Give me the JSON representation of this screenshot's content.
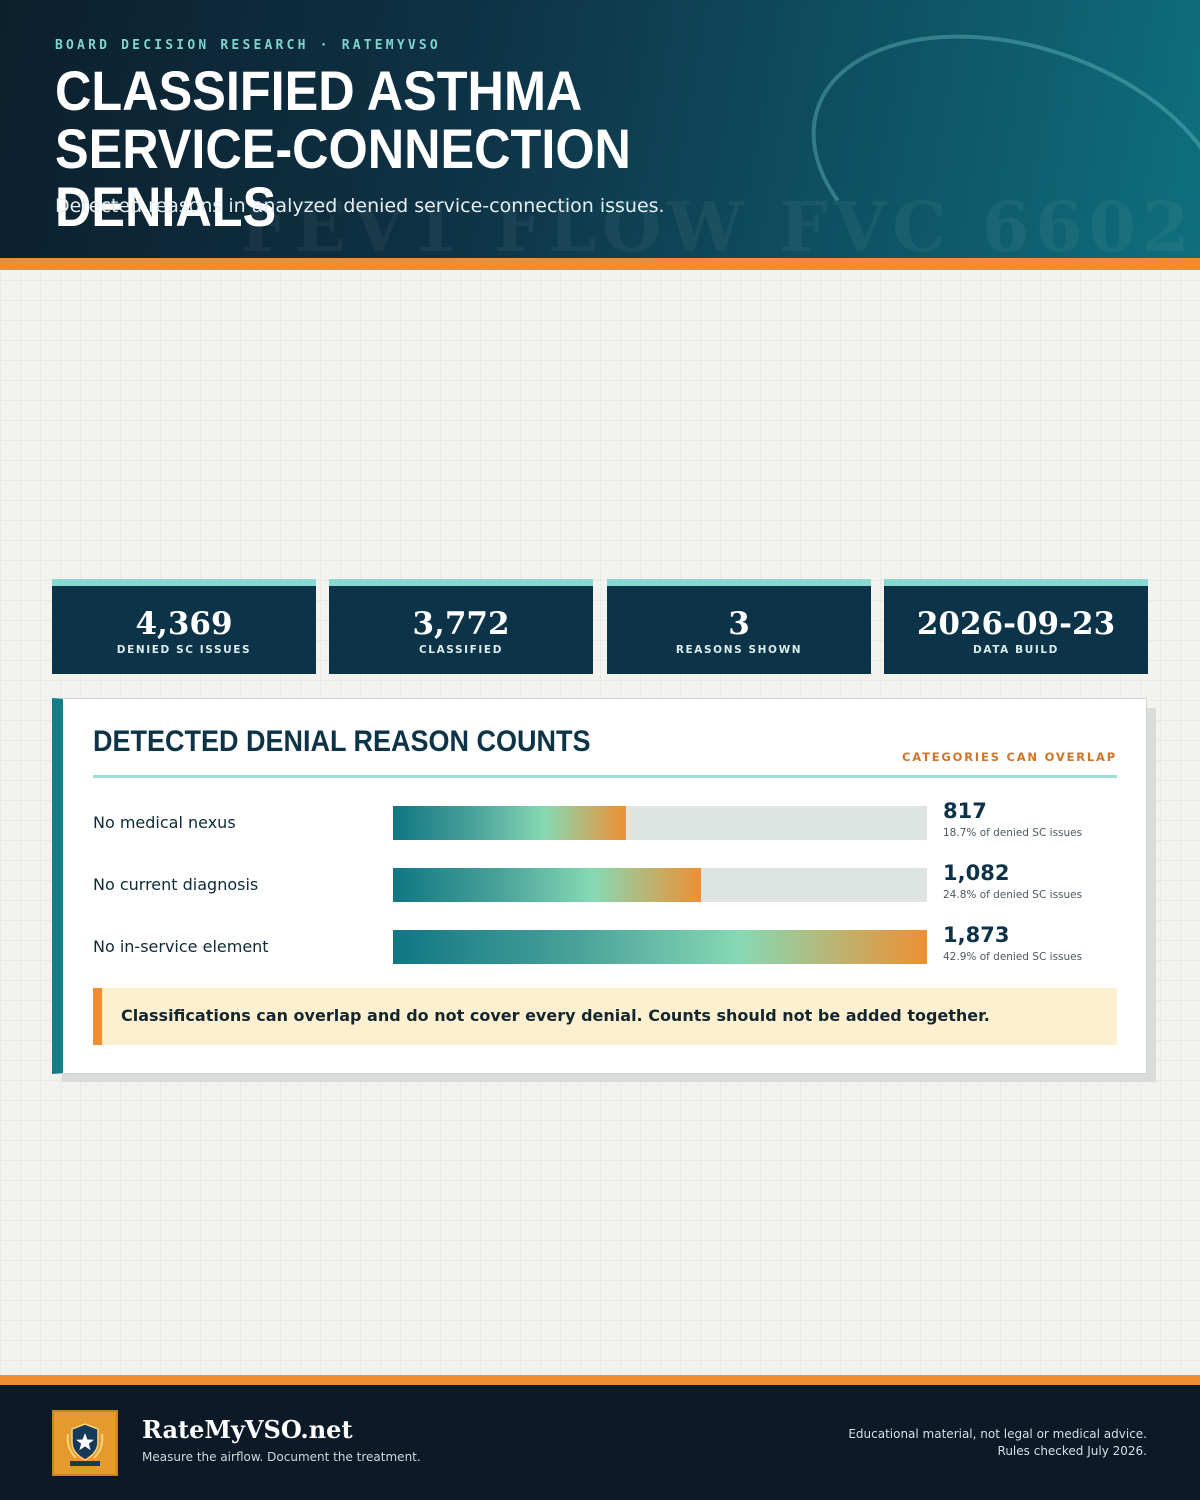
{
  "header": {
    "eyebrow": "BOARD DECISION RESEARCH · RATEMYVSO",
    "title": "CLASSIFIED ASTHMA SERVICE-CONNECTION DENIALS",
    "subtitle": "Detected reasons in analyzed denied service-connection issues.",
    "watermark": "FEV1 FLOW FVC 6602"
  },
  "stats": [
    {
      "value": "4,369",
      "label": "DENIED SC ISSUES"
    },
    {
      "value": "3,772",
      "label": "CLASSIFIED"
    },
    {
      "value": "3",
      "label": "REASONS SHOWN"
    },
    {
      "value": "2026-09-23",
      "label": "DATA BUILD"
    }
  ],
  "panel": {
    "title": "DETECTED DENIAL REASON COUNTS",
    "note": "CATEGORIES CAN OVERLAP",
    "callout": "Classifications can overlap and do not cover every denial. Counts should not be added together."
  },
  "chart_data": {
    "type": "bar",
    "orientation": "horizontal",
    "title": "DETECTED DENIAL REASON COUNTS",
    "categories": [
      "No medical nexus",
      "No current diagnosis",
      "No in-service element"
    ],
    "values": [
      817,
      1082,
      1873
    ],
    "value_labels": [
      "817",
      "1,082",
      "1,873"
    ],
    "percent_labels": [
      "18.7% of denied SC issues",
      "24.8% of denied SC issues",
      "42.9% of denied SC issues"
    ],
    "xlim": [
      0,
      4369
    ],
    "legend": "none",
    "grid": false
  },
  "footer": {
    "brand": "RateMyVSO.net",
    "tagline": "Measure the airflow. Document the treatment.",
    "disclaimer_line1": "Educational material, not legal or medical advice.",
    "disclaimer_line2": "Rules checked July 2026."
  },
  "colors": {
    "navy": "#0c3347",
    "teal": "#157d86",
    "orange": "#ee8d33",
    "mint": "#8ad8d2"
  },
  "icons": {
    "badge": "shield-star-icon"
  }
}
